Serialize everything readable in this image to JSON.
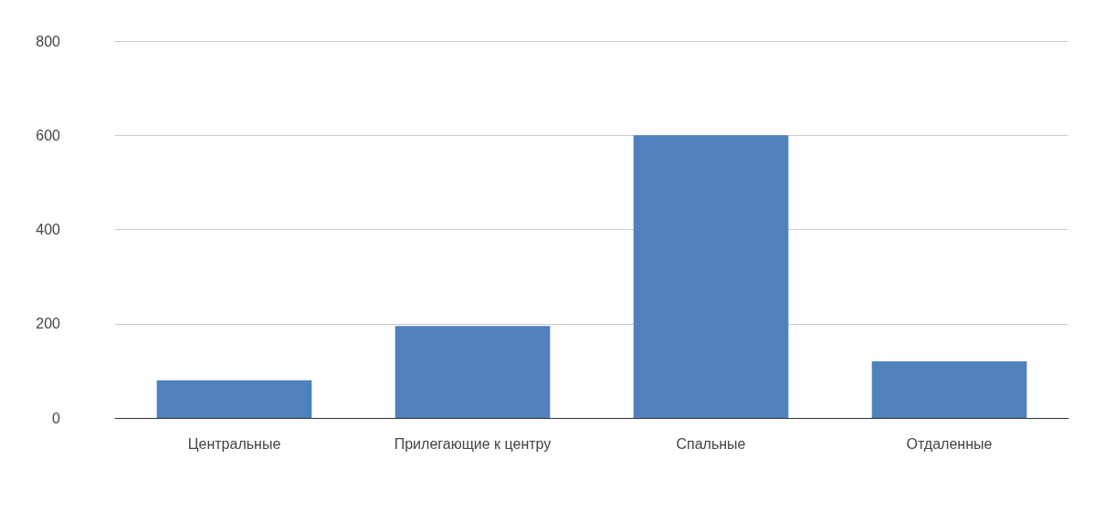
{
  "chart_data": {
    "type": "bar",
    "categories": [
      "Центральные",
      "Прилегающие к центру",
      "Спальные",
      "Отдаленные"
    ],
    "values": [
      80,
      195,
      600,
      120
    ],
    "color": "#4f81bd",
    "ylim": [
      0,
      800
    ],
    "yticks": [
      0,
      200,
      400,
      600,
      800
    ],
    "grid": "y"
  }
}
